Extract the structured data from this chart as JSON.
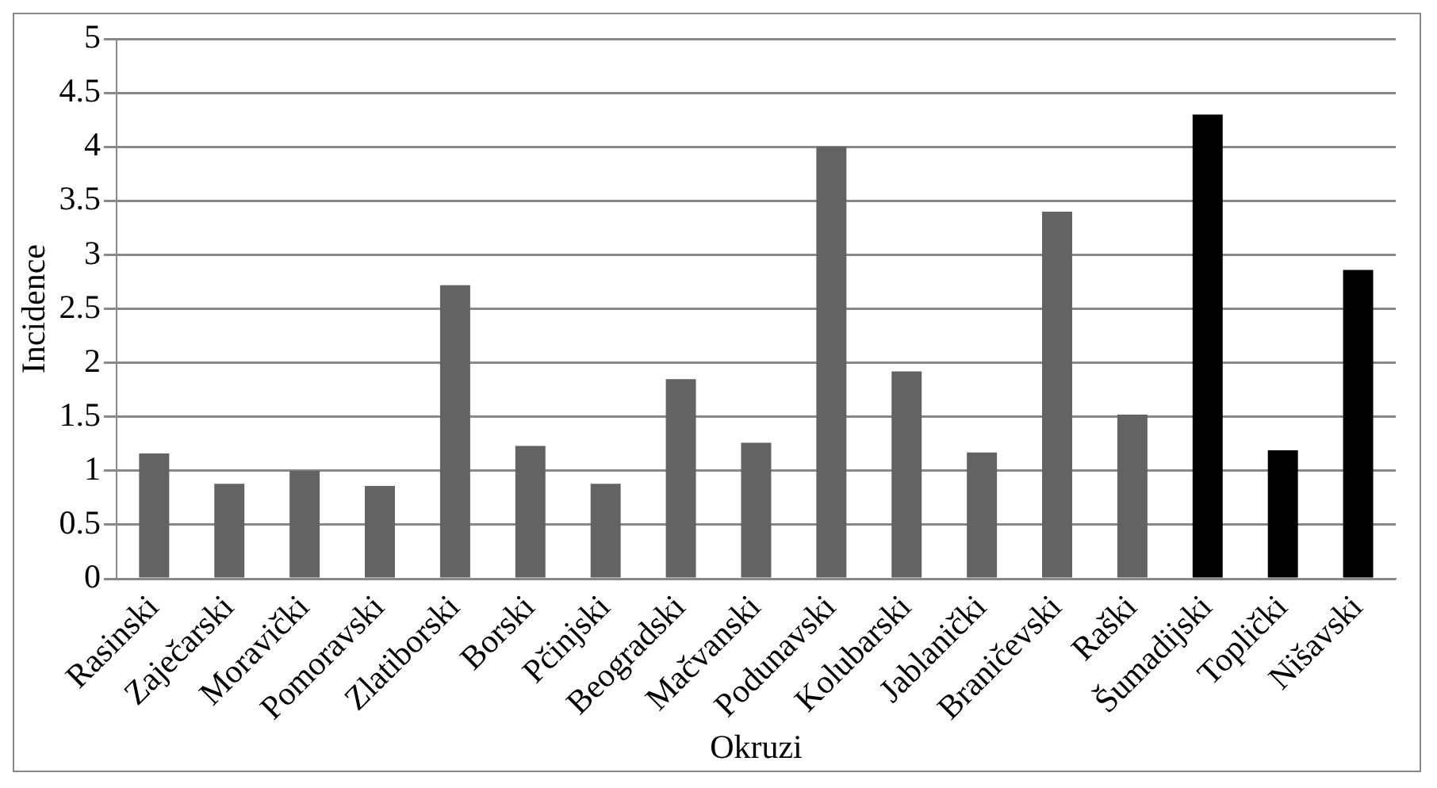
{
  "chart_data": {
    "type": "bar",
    "xlabel": "Okruzi",
    "ylabel": "Incidence",
    "categories": [
      "Rasinski",
      "Zaječarski",
      "Moravički",
      "Pomoravski",
      "Zlatiborski",
      "Borski",
      "Pčinjski",
      "Beogradski",
      "Mačvanski",
      "Podunavski",
      "Kolubarski",
      "Jablanički",
      "Braničevski",
      "Raški",
      "Šumadijski",
      "Toplički",
      "Nišavski"
    ],
    "values": [
      1.16,
      0.88,
      1.0,
      0.86,
      2.72,
      1.23,
      0.88,
      1.85,
      1.26,
      4.0,
      1.92,
      1.17,
      3.4,
      1.52,
      4.3,
      1.19,
      2.86
    ],
    "colors": [
      "#636363",
      "#636363",
      "#636363",
      "#636363",
      "#636363",
      "#636363",
      "#636363",
      "#636363",
      "#636363",
      "#636363",
      "#636363",
      "#636363",
      "#636363",
      "#636363",
      "#000000",
      "#000000",
      "#000000"
    ],
    "ylim": [
      0,
      5
    ],
    "yticks": [
      0,
      0.5,
      1,
      1.5,
      2,
      2.5,
      3,
      3.5,
      4,
      4.5,
      5
    ],
    "grid": "y",
    "legend": false
  }
}
